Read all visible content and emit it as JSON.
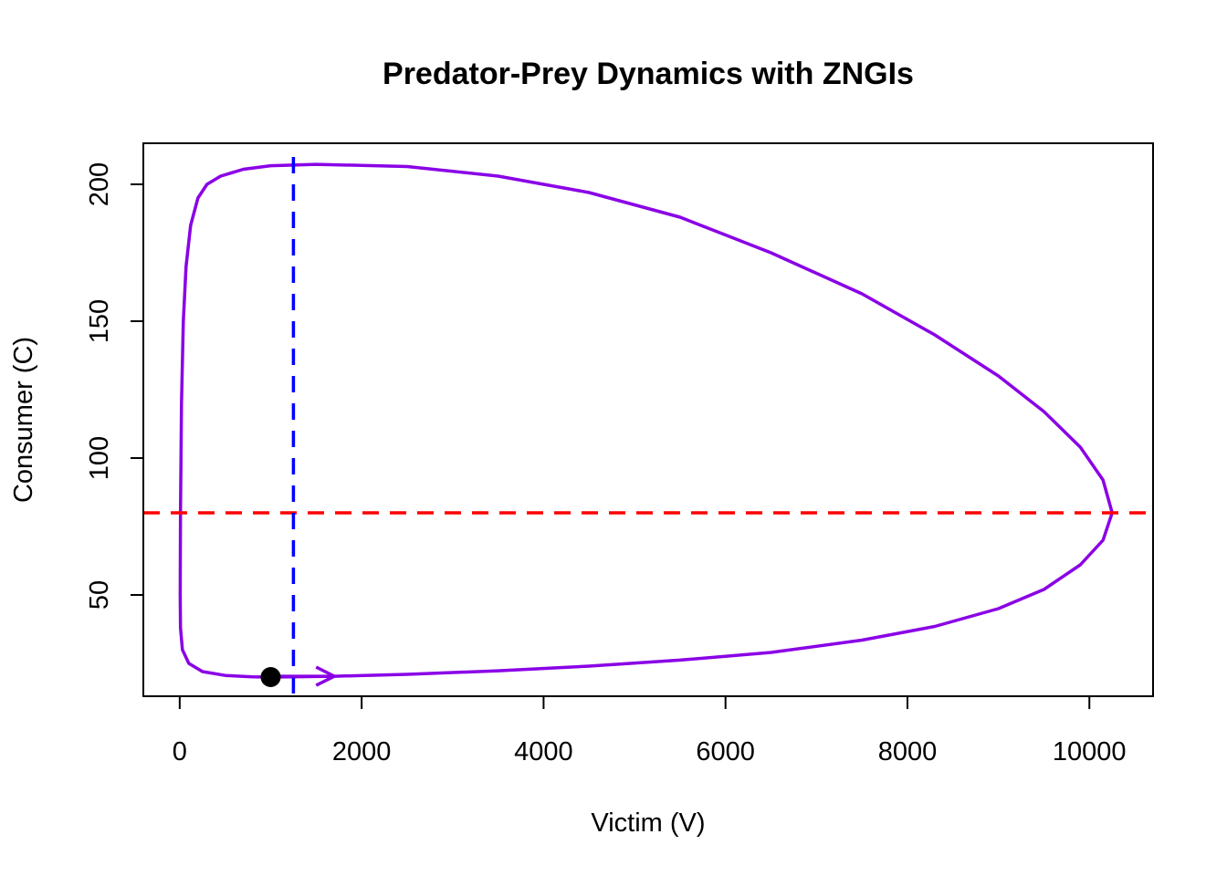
{
  "chart_data": {
    "type": "line",
    "title": "Predator-Prey Dynamics with ZNGIs",
    "xlabel": "Victim (V)",
    "ylabel": "Consumer (C)",
    "xlim": [
      -400,
      10700
    ],
    "ylim": [
      13,
      215
    ],
    "grid": false,
    "x_ticks": [
      "0",
      "2000",
      "4000",
      "6000",
      "8000",
      "10000"
    ],
    "y_ticks": [
      "50",
      "100",
      "150",
      "200"
    ],
    "series": [
      {
        "color": "#8a00e6",
        "points": [
          [
            1000,
            20
          ],
          [
            1700,
            20.3
          ],
          [
            2500,
            21
          ],
          [
            3500,
            22.3
          ],
          [
            4500,
            24
          ],
          [
            5500,
            26.2
          ],
          [
            6500,
            29
          ],
          [
            7500,
            33.5
          ],
          [
            8300,
            38.5
          ],
          [
            9000,
            45
          ],
          [
            9500,
            52
          ],
          [
            9900,
            61
          ],
          [
            10150,
            70
          ],
          [
            10250,
            80
          ],
          [
            10150,
            92
          ],
          [
            9900,
            104
          ],
          [
            9500,
            117
          ],
          [
            9000,
            130
          ],
          [
            8300,
            145
          ],
          [
            7500,
            160
          ],
          [
            6500,
            175
          ],
          [
            5500,
            188
          ],
          [
            4500,
            197
          ],
          [
            3500,
            203
          ],
          [
            2500,
            206.5
          ],
          [
            1500,
            207.3
          ],
          [
            1000,
            206.8
          ],
          [
            700,
            205.5
          ],
          [
            450,
            203
          ],
          [
            300,
            200
          ],
          [
            200,
            195
          ],
          [
            120,
            185
          ],
          [
            70,
            170
          ],
          [
            40,
            150
          ],
          [
            20,
            120
          ],
          [
            8,
            80
          ],
          [
            5,
            50
          ],
          [
            8,
            38
          ],
          [
            30,
            30
          ],
          [
            100,
            25
          ],
          [
            250,
            22
          ],
          [
            500,
            20.6
          ],
          [
            800,
            20.1
          ],
          [
            1000,
            20
          ]
        ]
      }
    ],
    "start_point": {
      "x": 1000,
      "y": 20,
      "color": "#000000"
    },
    "direction_arrow": {
      "x_from": 1000,
      "x_to": 1700,
      "y": 20.3,
      "color": "#8a00e6"
    },
    "zngi_victim": {
      "value": 80,
      "orientation": "horizontal",
      "color": "#ff0000",
      "style": "dashed"
    },
    "zngi_consumer": {
      "value": 1250,
      "orientation": "vertical",
      "color": "#0000ff",
      "style": "dashed"
    }
  }
}
